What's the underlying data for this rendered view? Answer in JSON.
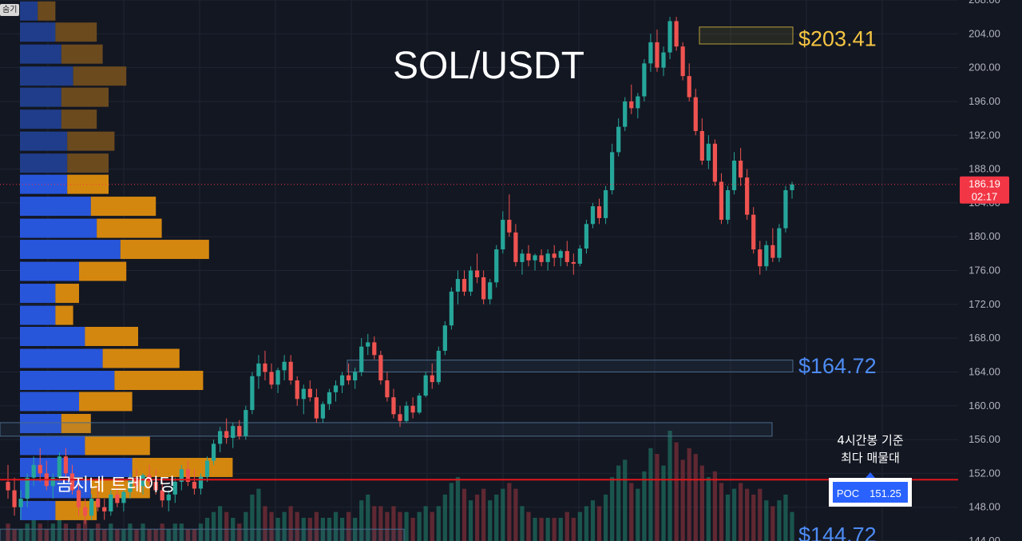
{
  "chart_data": {
    "type": "candlestick",
    "title": "SOL/USDT",
    "watermark": "곰지네 트레이딩",
    "hide_label": "숨기",
    "y_axis": {
      "min": 144,
      "max": 208,
      "ticks": [
        "208.00",
        "204.00",
        "200.00",
        "196.00",
        "192.00",
        "188.00",
        "184.00",
        "180.00",
        "176.00",
        "172.00",
        "168.00",
        "164.00",
        "160.00",
        "156.00",
        "152.00",
        "148.00",
        "144.00"
      ]
    },
    "last_price": {
      "value": 186.19,
      "label": "186.19",
      "countdown": "02:17",
      "color": "#f23645"
    },
    "price_levels": [
      {
        "label": "$203.41",
        "value": 203.41,
        "color": "#f5c542"
      },
      {
        "label": "$164.72",
        "value": 164.72,
        "color": "#4d8cf5"
      },
      {
        "label": "$144.72",
        "value": 144.72,
        "color": "#4d8cf5"
      }
    ],
    "poc": {
      "label": "POC",
      "value": "151.25",
      "price": 151.25,
      "annotation_line1": "4시간봉 기준",
      "annotation_line2": "최다 매물대",
      "line_color": "#e0161b"
    },
    "zones": [
      {
        "top": 204.8,
        "bottom": 202.8,
        "border": "#b8a13a"
      },
      {
        "top": 165.4,
        "bottom": 164.0,
        "border": "#4a6a8a"
      },
      {
        "top": 158.0,
        "bottom": 156.4,
        "border": "#4a6a8a"
      },
      {
        "top": 145.4,
        "bottom": 143.6,
        "border": "#4a6a8a"
      }
    ],
    "volume_profile": [
      {
        "price": 206.7,
        "buy": 3,
        "sell": 3
      },
      {
        "price": 204.2,
        "buy": 6,
        "sell": 7
      },
      {
        "price": 201.6,
        "buy": 7,
        "sell": 7
      },
      {
        "price": 199.0,
        "buy": 9,
        "sell": 9
      },
      {
        "price": 196.5,
        "buy": 7,
        "sell": 8
      },
      {
        "price": 193.9,
        "buy": 7,
        "sell": 6
      },
      {
        "price": 191.3,
        "buy": 8,
        "sell": 8
      },
      {
        "price": 188.7,
        "buy": 8,
        "sell": 7
      },
      {
        "price": 186.2,
        "buy": 8,
        "sell": 7
      },
      {
        "price": 183.6,
        "buy": 12,
        "sell": 11
      },
      {
        "price": 181.0,
        "buy": 13,
        "sell": 11
      },
      {
        "price": 178.5,
        "buy": 17,
        "sell": 15
      },
      {
        "price": 175.9,
        "buy": 10,
        "sell": 8
      },
      {
        "price": 173.3,
        "buy": 6,
        "sell": 4
      },
      {
        "price": 170.7,
        "buy": 6,
        "sell": 3
      },
      {
        "price": 168.2,
        "buy": 11,
        "sell": 9
      },
      {
        "price": 165.6,
        "buy": 14,
        "sell": 13
      },
      {
        "price": 163.0,
        "buy": 16,
        "sell": 15
      },
      {
        "price": 160.5,
        "buy": 10,
        "sell": 9
      },
      {
        "price": 157.9,
        "buy": 7,
        "sell": 5
      },
      {
        "price": 155.3,
        "buy": 11,
        "sell": 11
      },
      {
        "price": 152.7,
        "buy": 19,
        "sell": 17
      },
      {
        "price": 150.2,
        "buy": 12,
        "sell": 10
      },
      {
        "price": 147.6,
        "buy": 6,
        "sell": 7
      }
    ],
    "candles": [
      [
        151.0,
        153.0,
        149.0,
        150.0
      ],
      [
        150.0,
        151.5,
        147.0,
        148.0
      ],
      [
        148.0,
        150.0,
        146.5,
        149.0
      ],
      [
        149.0,
        152.0,
        148.0,
        151.5
      ],
      [
        151.5,
        154.0,
        150.5,
        153.0
      ],
      [
        153.0,
        155.0,
        151.0,
        152.0
      ],
      [
        152.0,
        153.5,
        150.0,
        150.5
      ],
      [
        150.5,
        152.0,
        149.0,
        151.5
      ],
      [
        151.5,
        154.5,
        151.0,
        154.0
      ],
      [
        154.0,
        155.0,
        151.5,
        152.0
      ],
      [
        152.0,
        153.0,
        149.5,
        150.0
      ],
      [
        150.0,
        151.0,
        147.0,
        148.0
      ],
      [
        148.0,
        149.0,
        146.0,
        147.0
      ],
      [
        147.0,
        149.5,
        146.5,
        149.0
      ],
      [
        149.0,
        150.5,
        147.5,
        148.0
      ],
      [
        148.0,
        149.0,
        146.5,
        147.5
      ],
      [
        147.5,
        150.0,
        147.0,
        149.5
      ],
      [
        149.5,
        151.0,
        148.0,
        148.5
      ],
      [
        148.5,
        150.0,
        147.5,
        149.8
      ],
      [
        149.8,
        152.0,
        149.0,
        151.5
      ],
      [
        151.5,
        152.5,
        150.0,
        150.5
      ],
      [
        150.5,
        152.0,
        149.5,
        151.8
      ],
      [
        151.8,
        153.0,
        150.5,
        151.0
      ],
      [
        151.0,
        152.5,
        149.5,
        150.0
      ],
      [
        150.0,
        151.0,
        148.0,
        148.8
      ],
      [
        148.8,
        150.0,
        147.5,
        149.5
      ],
      [
        149.5,
        151.5,
        148.5,
        151.0
      ],
      [
        151.0,
        153.0,
        150.0,
        152.5
      ],
      [
        152.5,
        153.5,
        150.5,
        151.0
      ],
      [
        151.0,
        152.5,
        149.5,
        150.2
      ],
      [
        150.2,
        152.0,
        149.5,
        151.6
      ],
      [
        151.6,
        154.0,
        151.0,
        153.5
      ],
      [
        153.5,
        156.0,
        153.0,
        155.5
      ],
      [
        155.5,
        157.5,
        154.5,
        157.0
      ],
      [
        157.0,
        158.5,
        155.5,
        156.2
      ],
      [
        156.2,
        158.0,
        155.0,
        157.6
      ],
      [
        157.6,
        158.3,
        156.0,
        156.4
      ],
      [
        156.4,
        160.0,
        156.0,
        159.5
      ],
      [
        159.5,
        164.0,
        159.0,
        163.5
      ],
      [
        163.5,
        166.0,
        162.0,
        165.0
      ],
      [
        165.0,
        166.5,
        163.0,
        164.0
      ],
      [
        164.0,
        165.0,
        162.0,
        162.5
      ],
      [
        162.5,
        164.5,
        161.5,
        164.2
      ],
      [
        164.2,
        166.0,
        163.0,
        165.2
      ],
      [
        165.2,
        166.0,
        162.5,
        163.0
      ],
      [
        163.0,
        163.5,
        160.0,
        160.8
      ],
      [
        160.8,
        162.5,
        159.0,
        162.0
      ],
      [
        162.0,
        163.0,
        160.5,
        161.0
      ],
      [
        161.0,
        162.0,
        158.0,
        158.5
      ],
      [
        158.5,
        160.5,
        158.0,
        160.2
      ],
      [
        160.2,
        162.0,
        159.5,
        161.6
      ],
      [
        161.6,
        163.0,
        160.5,
        162.4
      ],
      [
        162.4,
        164.0,
        161.5,
        163.6
      ],
      [
        163.6,
        165.0,
        162.5,
        163.0
      ],
      [
        163.0,
        164.5,
        162.0,
        164.0
      ],
      [
        164.0,
        168.0,
        163.5,
        167.0
      ],
      [
        167.0,
        168.5,
        166.0,
        167.5
      ],
      [
        167.5,
        168.2,
        165.5,
        166.0
      ],
      [
        166.0,
        166.5,
        162.5,
        163.0
      ],
      [
        163.0,
        164.0,
        160.5,
        161.0
      ],
      [
        161.0,
        162.0,
        158.5,
        159.0
      ],
      [
        159.0,
        160.0,
        157.5,
        158.2
      ],
      [
        158.2,
        160.5,
        158.0,
        160.0
      ],
      [
        160.0,
        161.0,
        158.5,
        159.2
      ],
      [
        159.2,
        161.5,
        159.0,
        161.2
      ],
      [
        161.2,
        164.0,
        161.0,
        163.6
      ],
      [
        163.6,
        165.0,
        162.0,
        162.8
      ],
      [
        162.8,
        167.0,
        162.5,
        166.5
      ],
      [
        166.5,
        170.0,
        166.0,
        169.5
      ],
      [
        169.5,
        174.0,
        169.0,
        173.5
      ],
      [
        173.5,
        176.0,
        172.0,
        175.0
      ],
      [
        175.0,
        176.0,
        173.0,
        173.5
      ],
      [
        173.5,
        176.5,
        173.0,
        176.0
      ],
      [
        176.0,
        178.0,
        174.5,
        175.2
      ],
      [
        175.2,
        176.0,
        172.0,
        172.6
      ],
      [
        172.6,
        175.0,
        172.0,
        174.6
      ],
      [
        174.6,
        179.0,
        174.0,
        178.5
      ],
      [
        178.5,
        183.0,
        178.0,
        182.0
      ],
      [
        182.0,
        185.0,
        180.0,
        180.5
      ],
      [
        180.5,
        181.5,
        176.5,
        177.0
      ],
      [
        177.0,
        178.5,
        175.5,
        178.0
      ],
      [
        178.0,
        179.0,
        176.5,
        177.2
      ],
      [
        177.2,
        178.0,
        176.0,
        177.8
      ],
      [
        177.8,
        178.5,
        176.5,
        177.0
      ],
      [
        177.0,
        178.5,
        176.0,
        178.0
      ],
      [
        178.0,
        179.0,
        176.5,
        177.5
      ],
      [
        177.5,
        178.5,
        176.5,
        178.3
      ],
      [
        178.3,
        179.5,
        176.5,
        177.0
      ],
      [
        177.0,
        178.0,
        175.5,
        176.8
      ],
      [
        176.8,
        179.0,
        176.5,
        178.6
      ],
      [
        178.6,
        182.0,
        178.0,
        181.5
      ],
      [
        181.5,
        184.0,
        181.0,
        183.6
      ],
      [
        183.6,
        184.5,
        181.5,
        182.2
      ],
      [
        182.2,
        186.0,
        181.5,
        185.5
      ],
      [
        185.5,
        191.0,
        185.0,
        190.0
      ],
      [
        190.0,
        194.0,
        189.5,
        193.0
      ],
      [
        193.0,
        196.5,
        192.5,
        196.0
      ],
      [
        196.0,
        198.0,
        194.5,
        195.2
      ],
      [
        195.2,
        197.0,
        194.0,
        196.6
      ],
      [
        196.6,
        201.0,
        196.0,
        200.5
      ],
      [
        200.5,
        204.0,
        199.5,
        203.0
      ],
      [
        203.0,
        204.5,
        199.5,
        200.0
      ],
      [
        200.0,
        202.5,
        199.0,
        201.8
      ],
      [
        201.8,
        206.0,
        201.0,
        205.5
      ],
      [
        205.5,
        206.0,
        202.0,
        202.5
      ],
      [
        202.5,
        203.0,
        198.5,
        199.0
      ],
      [
        199.0,
        200.5,
        196.0,
        196.5
      ],
      [
        196.5,
        197.5,
        192.0,
        192.5
      ],
      [
        192.5,
        194.0,
        188.5,
        189.0
      ],
      [
        189.0,
        192.0,
        188.0,
        191.0
      ],
      [
        191.0,
        191.5,
        186.0,
        186.5
      ],
      [
        186.5,
        187.5,
        181.5,
        182.0
      ],
      [
        182.0,
        186.0,
        181.5,
        185.5
      ],
      [
        185.5,
        190.0,
        185.0,
        189.0
      ],
      [
        189.0,
        190.5,
        186.0,
        187.0
      ],
      [
        187.0,
        188.0,
        182.0,
        182.6
      ],
      [
        182.6,
        183.5,
        178.0,
        178.5
      ],
      [
        178.5,
        179.5,
        175.5,
        176.5
      ],
      [
        176.5,
        179.5,
        176.0,
        179.0
      ],
      [
        179.0,
        181.0,
        177.0,
        177.5
      ],
      [
        177.5,
        181.5,
        177.0,
        181.0
      ],
      [
        181.0,
        186.0,
        180.5,
        185.5
      ],
      [
        185.5,
        186.5,
        184.5,
        186.19
      ]
    ],
    "volumes": [
      3,
      2,
      2,
      3,
      4,
      3,
      2,
      3,
      4,
      3,
      2,
      3,
      4,
      2,
      3,
      2,
      3,
      2,
      2,
      3,
      2,
      3,
      2,
      2,
      3,
      2,
      3,
      3,
      2,
      2,
      3,
      4,
      5,
      6,
      5,
      4,
      3,
      5,
      8,
      9,
      6,
      5,
      4,
      5,
      6,
      5,
      4,
      4,
      5,
      4,
      4,
      5,
      4,
      5,
      4,
      7,
      8,
      6,
      6,
      5,
      6,
      5,
      5,
      4,
      5,
      6,
      5,
      6,
      8,
      10,
      11,
      9,
      7,
      8,
      9,
      7,
      8,
      9,
      10,
      9,
      6,
      5,
      4,
      4,
      4,
      4,
      4,
      5,
      4,
      5,
      6,
      7,
      6,
      8,
      11,
      13,
      14,
      10,
      9,
      12,
      16,
      15,
      13,
      19,
      17,
      14,
      16,
      15,
      13,
      11,
      12,
      10,
      8,
      9,
      10,
      9,
      8,
      9,
      7,
      6,
      7,
      8,
      5
    ]
  }
}
